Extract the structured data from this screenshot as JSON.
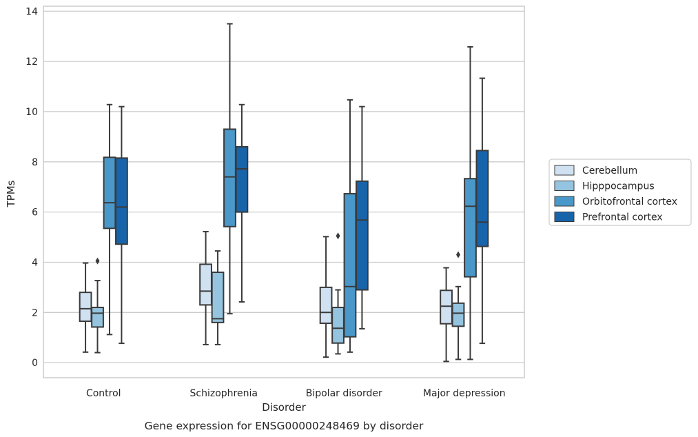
{
  "chart_data": {
    "type": "box",
    "title": "Gene expression for ENSG00000248469 by disorder",
    "xlabel": "Disorder",
    "ylabel": "TPMs",
    "ylim": [
      -0.6,
      14.2
    ],
    "yticks": [
      0,
      2,
      4,
      6,
      8,
      10,
      12,
      14
    ],
    "grid": true,
    "legend_position": "right",
    "categories": [
      "Control",
      "Schizophrenia",
      "Bipolar disorder",
      "Major depression"
    ],
    "series": [
      {
        "name": "Cerebellum",
        "color": "#d0e1f2",
        "boxes": [
          {
            "min": 0.42,
            "q1": 1.65,
            "median": 2.15,
            "q3": 2.8,
            "max": 3.97,
            "outliers": []
          },
          {
            "min": 0.72,
            "q1": 2.3,
            "median": 2.85,
            "q3": 3.92,
            "max": 5.22,
            "outliers": []
          },
          {
            "min": 0.22,
            "q1": 1.57,
            "median": 2.0,
            "q3": 3.0,
            "max": 5.02,
            "outliers": []
          },
          {
            "min": 0.05,
            "q1": 1.55,
            "median": 2.25,
            "q3": 2.88,
            "max": 3.78,
            "outliers": []
          }
        ]
      },
      {
        "name": "Hipppocampus",
        "color": "#94c4df",
        "boxes": [
          {
            "min": 0.4,
            "q1": 1.42,
            "median": 1.97,
            "q3": 2.2,
            "max": 3.27,
            "outliers": [
              4.05
            ]
          },
          {
            "min": 0.72,
            "q1": 1.6,
            "median": 1.75,
            "q3": 3.6,
            "max": 4.45,
            "outliers": []
          },
          {
            "min": 0.35,
            "q1": 0.78,
            "median": 1.37,
            "q3": 2.2,
            "max": 2.9,
            "outliers": [
              5.05
            ]
          },
          {
            "min": 0.13,
            "q1": 1.45,
            "median": 1.97,
            "q3": 2.37,
            "max": 3.03,
            "outliers": [
              4.3
            ]
          }
        ]
      },
      {
        "name": "Orbitofrontal cortex",
        "color": "#4a98c9",
        "boxes": [
          {
            "min": 1.12,
            "q1": 5.35,
            "median": 6.37,
            "q3": 8.18,
            "max": 10.28,
            "outliers": []
          },
          {
            "min": 1.95,
            "q1": 5.42,
            "median": 7.4,
            "q3": 9.3,
            "max": 13.5,
            "outliers": []
          },
          {
            "min": 0.42,
            "q1": 1.03,
            "median": 3.03,
            "q3": 6.73,
            "max": 10.47,
            "outliers": []
          },
          {
            "min": 0.13,
            "q1": 3.42,
            "median": 6.23,
            "q3": 7.33,
            "max": 12.58,
            "outliers": []
          }
        ]
      },
      {
        "name": "Prefrontal cortex",
        "color": "#1764ab",
        "boxes": [
          {
            "min": 0.77,
            "q1": 4.72,
            "median": 6.2,
            "q3": 8.15,
            "max": 10.2,
            "outliers": []
          },
          {
            "min": 2.42,
            "q1": 6.0,
            "median": 7.72,
            "q3": 8.6,
            "max": 10.28,
            "outliers": []
          },
          {
            "min": 1.35,
            "q1": 2.9,
            "median": 5.68,
            "q3": 7.23,
            "max": 10.2,
            "outliers": []
          },
          {
            "min": 0.77,
            "q1": 4.63,
            "median": 5.6,
            "q3": 8.45,
            "max": 11.33,
            "outliers": []
          }
        ]
      }
    ]
  }
}
